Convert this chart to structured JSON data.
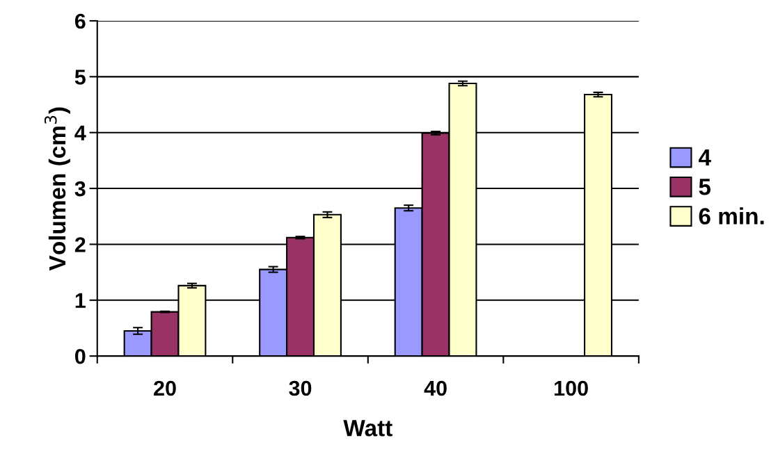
{
  "chart_data": {
    "type": "bar",
    "xlabel": "Watt",
    "ylabel": "Volumen (cm$^{3}$)",
    "categories": [
      "20",
      "30",
      "40",
      "100"
    ],
    "series": [
      {
        "name": "4",
        "color": "#9999ff",
        "values": [
          0.45,
          1.55,
          2.65,
          null
        ],
        "errors": [
          0.06,
          0.05,
          0.05,
          null
        ]
      },
      {
        "name": "5",
        "color": "#993366",
        "values": [
          0.79,
          2.12,
          3.99,
          null
        ],
        "errors": [
          0.01,
          0.02,
          0.03,
          null
        ]
      },
      {
        "name": "6 min.",
        "color": "#ffffcc",
        "values": [
          1.26,
          2.53,
          4.88,
          4.68
        ],
        "errors": [
          0.04,
          0.05,
          0.04,
          0.04
        ]
      }
    ],
    "ylim": [
      0,
      6
    ],
    "yticks": [
      0,
      1,
      2,
      3,
      4,
      5,
      6
    ],
    "grid": "y",
    "legend": "right"
  }
}
